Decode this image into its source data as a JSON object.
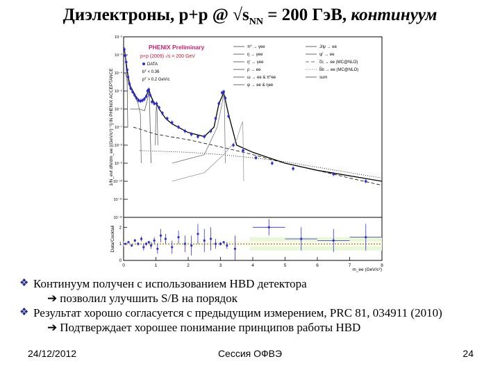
{
  "slide": {
    "title_main": "Диэлектроны, p+p @ √s",
    "title_sub": "NN",
    "title_mid": " = 200 ГэВ, ",
    "title_italic": "континуум",
    "bullets": [
      {
        "level": 0,
        "marker": "❖",
        "text": "Континуум получен с использованием HBD детектора"
      },
      {
        "level": 1,
        "marker": "➔",
        "text": "позволил улучшить S/B на порядок"
      },
      {
        "level": 0,
        "marker": "❖",
        "text": "Результат хорошо согласуется с предыдущим измерением, PRC 81, 034911 (2010)"
      },
      {
        "level": 1,
        "marker": "➔",
        "text": "Подтверждает хорошее понимание принципов работы HBD"
      }
    ],
    "footer": {
      "date": "24/12/2012",
      "session": "Сессия ОФВЭ",
      "page": "24"
    }
  },
  "chart_data": [
    {
      "type": "line",
      "title": "PHENIX Preliminary",
      "subtitle": "p+p (2009) √s = 200 GeV",
      "xlabel": "",
      "ylabel": "1/N_evt dN/dm_ee [(GeV/c²)⁻¹] IN PHENIX ACCEPTANCE",
      "yscale": "log",
      "xlim": [
        0,
        8
      ],
      "ylim": [
        1e-12,
        0.01
      ],
      "ytick_labels": [
        "10⁻²",
        "10⁻³",
        "10⁻⁴",
        "10⁻⁵",
        "10⁻⁶",
        "10⁻⁷",
        "10⁻⁸",
        "10⁻⁹",
        "10⁻¹⁰",
        "10⁻¹¹",
        "10⁻¹²"
      ],
      "notes": [
        "DATA",
        "bᵀ < 0.36",
        "pᵀ > 0.2 GeV/c"
      ],
      "legend_position": "top-right",
      "legend": [
        "π⁰ → γee",
        "η → γee",
        "η′ → γee",
        "ρ → ee",
        "ω → ee & π⁰ee",
        "φ → ee & ηee",
        "J/ψ → ee",
        "ψ′ → ee",
        "c̅c → ee (MC@NLO)",
        "b̅b → ee (MC@NLO)",
        "sum"
      ],
      "series": [
        {
          "name": "DATA",
          "color": "#2b2bd6",
          "x": [
            0.02,
            0.05,
            0.08,
            0.11,
            0.14,
            0.18,
            0.22,
            0.28,
            0.34,
            0.4,
            0.46,
            0.52,
            0.58,
            0.64,
            0.7,
            0.74,
            0.78,
            0.82,
            0.88,
            0.95,
            1.02,
            1.1,
            1.2,
            1.35,
            1.5,
            1.7,
            1.9,
            2.1,
            2.3,
            2.5,
            2.7,
            2.85,
            2.95,
            3.05,
            3.1,
            3.15,
            3.25,
            3.4,
            3.7,
            4.1,
            4.6,
            5.25,
            6.5,
            7.5
          ],
          "y": [
            0.002,
            0.0009,
            0.0004,
            0.00015,
            6e-05,
            2.5e-05,
            1.4e-05,
            9e-06,
            6e-06,
            4e-06,
            3e-06,
            2.8e-06,
            3e-06,
            3.5e-06,
            5e-06,
            1e-05,
            1.2e-05,
            6e-06,
            2.5e-06,
            2e-06,
            2e-06,
            1.2e-06,
            6e-07,
            3e-07,
            1.8e-07,
            1e-07,
            6e-08,
            4e-08,
            3e-08,
            3e-08,
            6e-08,
            3e-07,
            2e-06,
            8e-06,
            9e-06,
            4e-06,
            4e-07,
            1e-08,
            5e-09,
            2e-09,
            1e-09,
            5e-10,
            2.5e-10,
            1e-10
          ]
        },
        {
          "name": "sum",
          "color": "#000000",
          "x": [
            0.02,
            0.05,
            0.1,
            0.15,
            0.2,
            0.3,
            0.4,
            0.5,
            0.6,
            0.7,
            0.78,
            0.85,
            0.95,
            1.02,
            1.1,
            1.3,
            1.5,
            2.0,
            2.5,
            2.8,
            2.95,
            3.1,
            3.25,
            3.5,
            4.0,
            5.0,
            6.0,
            7.0,
            8.0
          ],
          "y": [
            0.0025,
            0.0009,
            0.0002,
            5e-05,
            2e-05,
            9e-06,
            4e-06,
            3e-06,
            3e-06,
            5e-06,
            1.2e-05,
            5e-06,
            2e-06,
            2e-06,
            1e-06,
            3e-07,
            1.5e-07,
            5e-08,
            3e-08,
            1e-07,
            2e-06,
            8e-06,
            5e-07,
            1e-08,
            4e-09,
            1e-09,
            4e-10,
            2e-10,
            1e-10
          ]
        },
        {
          "name": "c̅c → ee (MC@NLO)",
          "color": "#000000",
          "dash": "5,3",
          "x": [
            0.3,
            1,
            2,
            3,
            4,
            5,
            6,
            7,
            8
          ],
          "y": [
            1e-07,
            4e-08,
            2e-08,
            8e-09,
            3e-09,
            1e-09,
            4e-10,
            1.5e-10,
            6e-11
          ]
        },
        {
          "name": "b̅b → ee (MC@NLO)",
          "color": "#000000",
          "dash": "1,2",
          "x": [
            0.5,
            2,
            3,
            4,
            5,
            6,
            7,
            8
          ],
          "y": [
            5e-09,
            4e-09,
            3e-09,
            2e-09,
            1.2e-09,
            6e-10,
            3e-10,
            1.5e-10
          ]
        },
        {
          "name": "π⁰ → γee",
          "color": "#555555",
          "x": [
            0.02,
            0.05,
            0.08,
            0.11,
            0.13
          ],
          "y": [
            0.002,
            0.0008,
            0.0002,
            3e-05,
            1e-07
          ]
        },
        {
          "name": "η → γee",
          "color": "#666666",
          "x": [
            0.05,
            0.2,
            0.35,
            0.45,
            0.52,
            0.547
          ],
          "y": [
            0.0001,
            1.5e-05,
            5e-06,
            2e-06,
            5e-07,
            1e-09
          ]
        },
        {
          "name": "ω → ee & π⁰ee",
          "color": "#555555",
          "x": [
            0.2,
            0.5,
            0.65,
            0.75,
            0.78,
            0.8,
            0.85
          ],
          "y": [
            1e-06,
            1e-06,
            8e-07,
            4e-06,
            1e-05,
            4e-06,
            1e-09
          ]
        },
        {
          "name": "φ → ee & ηee",
          "color": "#666666",
          "x": [
            0.98,
            1.0,
            1.02,
            1.04,
            1.06
          ],
          "y": [
            1e-08,
            5e-07,
            1.8e-06,
            5e-07,
            1e-08
          ]
        },
        {
          "name": "J/ψ → ee",
          "color": "#777777",
          "x": [
            1.5,
            2.5,
            2.9,
            3.05,
            3.1,
            3.12,
            3.15
          ],
          "y": [
            1e-09,
            3e-09,
            1e-07,
            2e-06,
            8e-06,
            3e-06,
            1e-09
          ]
        },
        {
          "name": "ψ′ → ee",
          "color": "#999999",
          "x": [
            1.5,
            2.5,
            3.1,
            3.5,
            3.65,
            3.69,
            3.72
          ],
          "y": [
            1e-10,
            3e-10,
            3e-09,
            2e-08,
            1.4e-07,
            2e-07,
            1e-10
          ]
        }
      ]
    },
    {
      "type": "scatter",
      "xlabel": "m_ee (GeV/c²)",
      "ylabel": "Data/Cocktail",
      "xlim": [
        0,
        8
      ],
      "ylim": [
        0,
        2.6
      ],
      "xticks": [
        0,
        1,
        2,
        3,
        4,
        5,
        6,
        7,
        8
      ],
      "yticks": [
        0,
        1,
        2
      ],
      "band_color": "#e9f7d9",
      "x": [
        0.05,
        0.15,
        0.25,
        0.35,
        0.45,
        0.55,
        0.62,
        0.7,
        0.78,
        0.85,
        0.95,
        1.05,
        1.15,
        1.3,
        1.5,
        1.7,
        1.9,
        2.1,
        2.3,
        2.5,
        2.7,
        2.85,
        3.0,
        3.1,
        3.2,
        3.45,
        4.5,
        5.5,
        6.5,
        7.5
      ],
      "y": [
        1.0,
        1.1,
        0.9,
        1.2,
        1.0,
        1.3,
        0.8,
        1.0,
        1.1,
        0.9,
        1.2,
        0.7,
        1.5,
        1.3,
        0.8,
        1.4,
        1.0,
        0.9,
        1.6,
        1.2,
        1.3,
        1.0,
        1.0,
        1.1,
        0.9,
        0.7,
        2.0,
        1.3,
        1.2,
        1.4
      ],
      "yerr": [
        0.05,
        0.05,
        0.08,
        0.1,
        0.1,
        0.15,
        0.2,
        0.1,
        0.08,
        0.2,
        0.2,
        0.3,
        0.4,
        0.3,
        0.4,
        0.4,
        0.5,
        0.6,
        0.6,
        0.7,
        0.7,
        0.3,
        0.1,
        0.05,
        0.2,
        0.8,
        0.5,
        0.7,
        0.7,
        0.8
      ]
    }
  ]
}
